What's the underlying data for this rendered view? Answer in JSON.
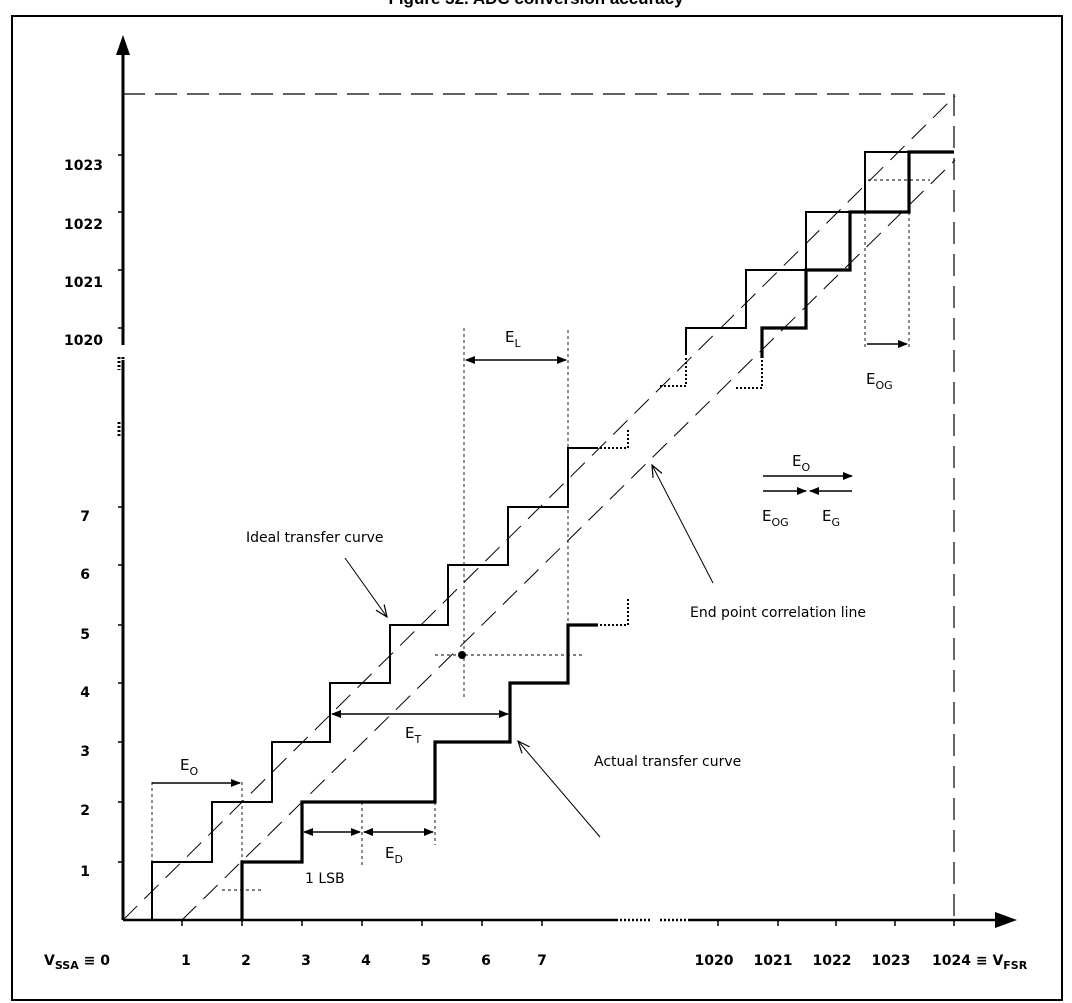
{
  "figure": {
    "title": "Figure 32. ADC conversion accuracy"
  },
  "y_axis": {
    "lower_ticks": [
      "1",
      "2",
      "3",
      "4",
      "5",
      "6",
      "7"
    ],
    "upper_ticks": [
      "1020",
      "1021",
      "1022",
      "1023"
    ]
  },
  "x_axis": {
    "origin_label": {
      "main": "V",
      "sub": "SSA",
      "rest": " ≡ 0"
    },
    "lower_ticks": [
      "1",
      "2",
      "3",
      "4",
      "5",
      "6",
      "7"
    ],
    "upper_ticks": [
      "1020",
      "1021",
      "1022",
      "1023"
    ],
    "end_label": {
      "main": "1024 ≡ V",
      "sub": "FSR"
    }
  },
  "annotations": {
    "ideal_curve": "Ideal transfer curve",
    "actual_curve": "Actual transfer curve",
    "end_point_line": "End point correlation line",
    "one_lsb": "1 LSB",
    "eo": {
      "main": "E",
      "sub": "O"
    },
    "et": {
      "main": "E",
      "sub": "T"
    },
    "ed": {
      "main": "E",
      "sub": "D"
    },
    "el": {
      "main": "E",
      "sub": "L"
    },
    "eog": {
      "main": "E",
      "sub": "OG"
    },
    "legend_eo": {
      "main": "E",
      "sub": "O"
    },
    "legend_eog": {
      "main": "E",
      "sub": "OG"
    },
    "legend_eg": {
      "main": "E",
      "sub": "G"
    }
  }
}
